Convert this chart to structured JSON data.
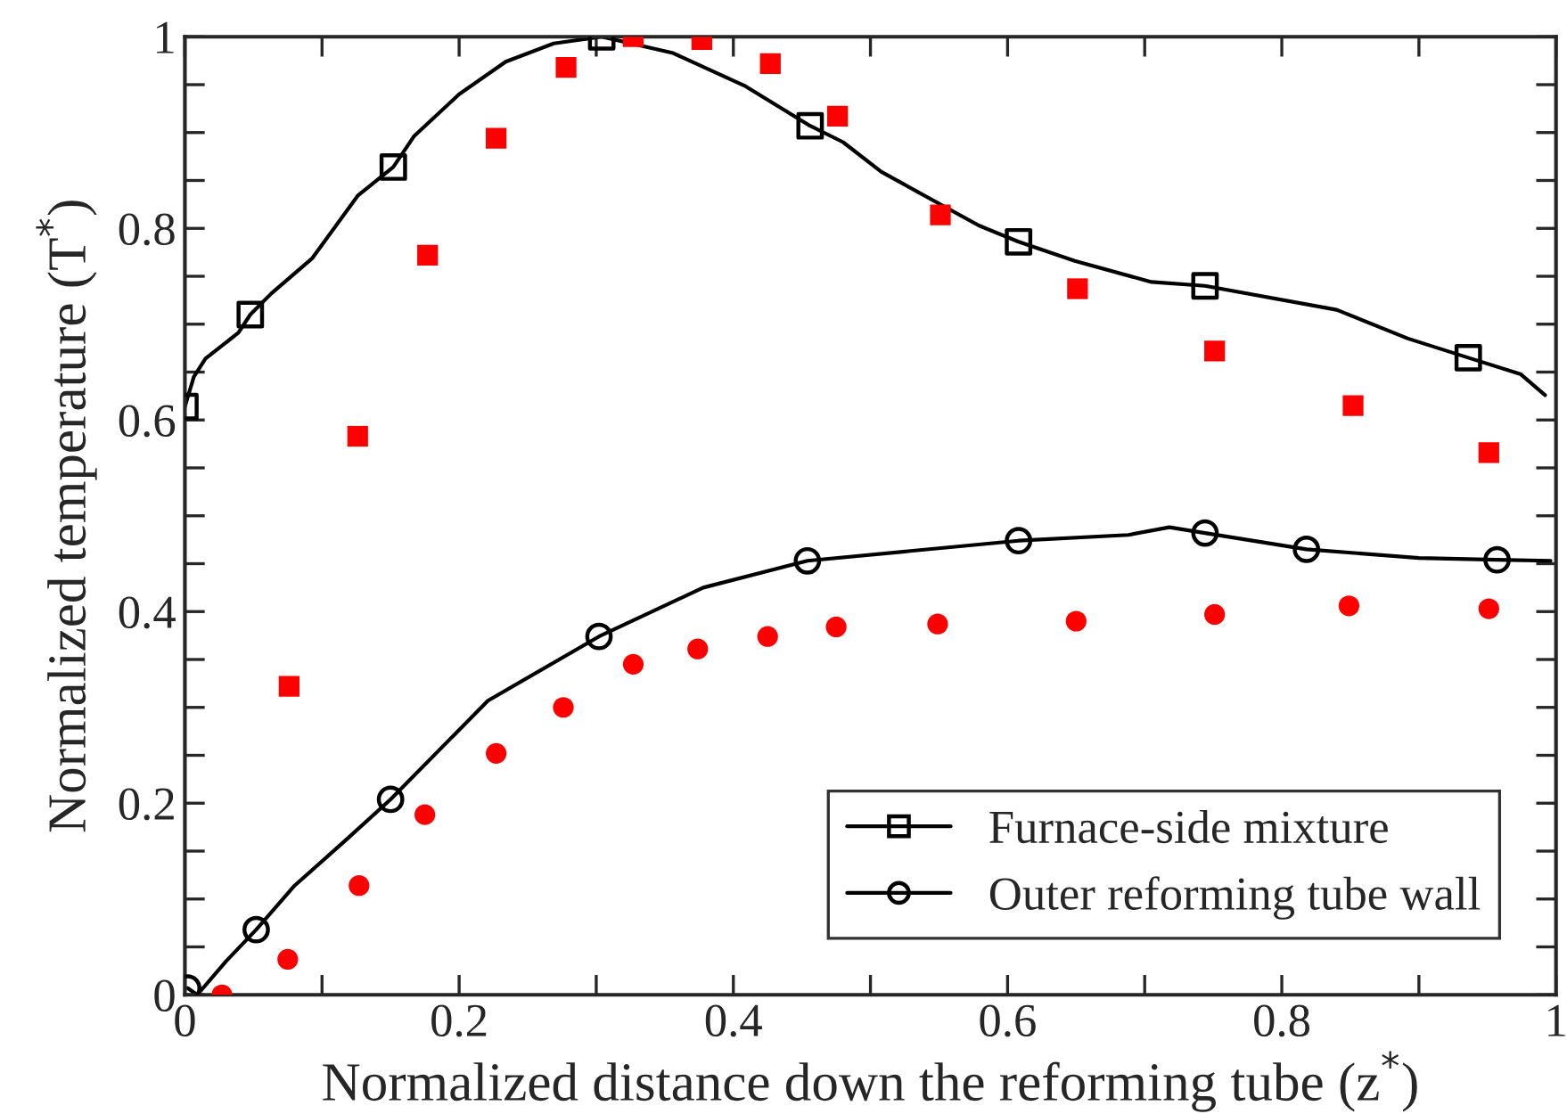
{
  "chart_data": {
    "type": "line",
    "xlabel": "Normalized distance down the reforming tube (z$^{*}$)",
    "ylabel": "Normalized temperature (T$^{*}$)",
    "xlim": [
      0,
      1
    ],
    "ylim": [
      0,
      1
    ],
    "xticks": [
      0,
      {
        "value": 0.1,
        "label": null
      },
      0.2,
      {
        "value": 0.3,
        "label": null
      },
      0.4,
      {
        "value": 0.5,
        "label": null
      },
      0.6,
      {
        "value": 0.7,
        "label": null
      },
      0.8,
      {
        "value": 0.9,
        "label": null
      },
      1
    ],
    "yticks": [
      0,
      {
        "value": 0.05,
        "label": null
      },
      {
        "value": 0.1,
        "label": null
      },
      {
        "value": 0.15,
        "label": null
      },
      0.2,
      {
        "value": 0.25,
        "label": null
      },
      {
        "value": 0.3,
        "label": null
      },
      {
        "value": 0.35,
        "label": null
      },
      0.4,
      {
        "value": 0.45,
        "label": null
      },
      {
        "value": 0.5,
        "label": null
      },
      {
        "value": 0.55,
        "label": null
      },
      0.6,
      {
        "value": 0.65,
        "label": null
      },
      {
        "value": 0.7,
        "label": null
      },
      {
        "value": 0.75,
        "label": null
      },
      0.8,
      {
        "value": 0.85,
        "label": null
      },
      {
        "value": 0.9,
        "label": null
      },
      {
        "value": 0.95,
        "label": null
      },
      1
    ],
    "grid": false,
    "legend": "bottom right",
    "series": [
      {
        "color": "#000000",
        "marker": "none",
        "x": [
          0,
          0.0065,
          0.015,
          0.039,
          0.0477,
          0.063,
          0.093,
          0.126,
          0.152,
          0.167,
          0.2,
          0.234,
          0.269,
          0.304,
          0.356,
          0.408,
          0.456,
          0.48,
          0.508,
          0.579,
          0.608,
          0.649,
          0.705,
          0.744,
          0.84,
          0.892,
          0.936,
          0.974,
          0.992
        ],
        "values": [
          0.614,
          0.645,
          0.664,
          0.691,
          0.71,
          0.732,
          0.769,
          0.834,
          0.864,
          0.896,
          0.94,
          0.974,
          0.993,
          1.0,
          0.983,
          0.949,
          0.907,
          0.89,
          0.859,
          0.803,
          0.786,
          0.766,
          0.744,
          0.74,
          0.715,
          0.685,
          0.665,
          0.648,
          0.626
        ]
      },
      {
        "type": "scatter",
        "name": "Furnace-side mixture",
        "color": "#000000",
        "marker": "square",
        "line_style": "solid",
        "x": [
          0,
          0.0477,
          0.152,
          0.304,
          0.456,
          0.608,
          0.744,
          0.936
        ],
        "values": [
          0.614,
          0.71,
          0.864,
          1.0,
          0.907,
          0.786,
          0.74,
          0.665
        ]
      },
      {
        "color": "#000000",
        "marker": "none",
        "x": [
          0.002,
          0.009,
          0.03,
          0.052,
          0.08,
          0.117,
          0.15,
          0.221,
          0.302,
          0.378,
          0.454,
          0.608,
          0.688,
          0.718,
          0.744,
          0.818,
          0.9,
          0.957,
          0.996
        ],
        "values": [
          0.007,
          0.0,
          0.035,
          0.068,
          0.114,
          0.161,
          0.204,
          0.307,
          0.374,
          0.425,
          0.453,
          0.474,
          0.48,
          0.488,
          0.482,
          0.465,
          0.456,
          0.454,
          0.453
        ]
      },
      {
        "type": "scatter",
        "name": "Outer reforming tube wall",
        "color": "#000000",
        "marker": "circle",
        "line_style": "solid",
        "x": [
          0.002,
          0.052,
          0.15,
          0.302,
          0.454,
          0.608,
          0.744,
          0.818,
          0.957
        ],
        "values": [
          0.007,
          0.068,
          0.204,
          0.374,
          0.453,
          0.474,
          0.482,
          0.465,
          0.454
        ]
      },
      {
        "type": "scatter",
        "color": "#ff0000",
        "marker": "square",
        "x": [
          0.076,
          0.126,
          0.177,
          0.227,
          0.278,
          0.327,
          0.377,
          0.427,
          0.476,
          0.551,
          0.651,
          0.751,
          0.852,
          0.951
        ],
        "values": [
          0.322,
          0.583,
          0.772,
          0.894,
          0.968,
          1.0,
          0.997,
          0.972,
          0.917,
          0.814,
          0.737,
          0.672,
          0.615,
          0.566
        ]
      },
      {
        "type": "scatter",
        "color": "#ff0000",
        "marker": "circle",
        "x": [
          0.027,
          0.075,
          0.127,
          0.175,
          0.227,
          0.276,
          0.327,
          0.374,
          0.425,
          0.475,
          0.549,
          0.65,
          0.751,
          0.849,
          0.951
        ],
        "values": [
          0.0,
          0.037,
          0.114,
          0.188,
          0.252,
          0.3,
          0.345,
          0.361,
          0.374,
          0.384,
          0.387,
          0.39,
          0.397,
          0.406,
          0.403
        ]
      }
    ]
  }
}
